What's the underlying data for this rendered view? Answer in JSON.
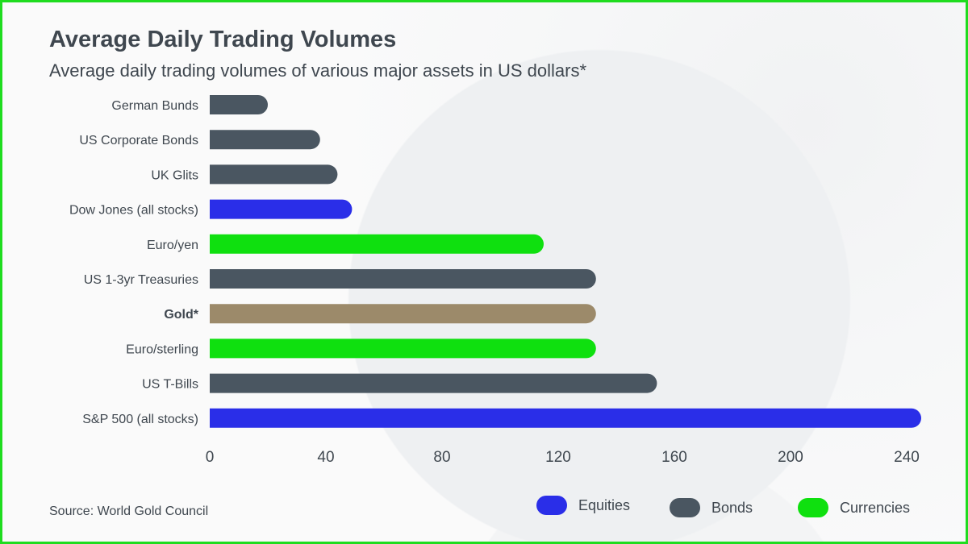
{
  "title": "Average Daily Trading Volumes",
  "subtitle": "Average daily trading volumes of various major assets in US dollars*",
  "source": "Source: World Gold Council",
  "colors": {
    "Equities": "#2a2ee8",
    "Bonds": "#4a5661",
    "Currencies": "#0fe00f",
    "Gold": "#9c8a6a",
    "border": "#1fdc1f"
  },
  "legend": [
    {
      "label": "Equities",
      "color": "#2a2ee8"
    },
    {
      "label": "Bonds",
      "color": "#4a5661"
    },
    {
      "label": "Currencies",
      "color": "#0fe00f"
    }
  ],
  "chart_data": {
    "type": "bar",
    "orientation": "horizontal",
    "title": "Average Daily Trading Volumes",
    "xlabel": "",
    "ylabel": "",
    "xlim": [
      0,
      250
    ],
    "xticks": [
      0,
      40,
      80,
      120,
      160,
      200,
      240
    ],
    "grid": false,
    "legend_position": "bottom-right",
    "categories": [
      "German Bunds",
      "US Corporate Bonds",
      "UK Glits",
      "Dow Jones (all stocks)",
      "Euro/yen",
      "US 1-3yr Treasuries",
      "Gold*",
      "Euro/sterling",
      "US T-Bills",
      "S&P 500 (all stocks)"
    ],
    "values": [
      20,
      38,
      44,
      49,
      115,
      133,
      133,
      133,
      154,
      245
    ],
    "groups": [
      "Bonds",
      "Bonds",
      "Bonds",
      "Equities",
      "Currencies",
      "Bonds",
      "Gold",
      "Currencies",
      "Bonds",
      "Equities"
    ]
  }
}
